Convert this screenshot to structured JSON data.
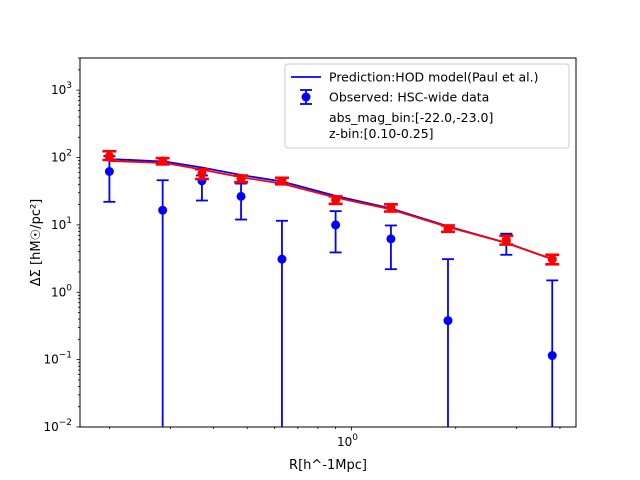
{
  "chart_data": {
    "type": "scatter",
    "xscale": "log",
    "yscale": "log",
    "xlim": [
      0.1645,
      4.45
    ],
    "ylim": [
      0.01,
      3000
    ],
    "xlabel": "R[h^-1Mpc]",
    "ylabel": "ΔΣ [hM☉/pc²]",
    "x_tick_labels": [
      {
        "value": 1,
        "base": "10",
        "exp": "0"
      }
    ],
    "y_tick_labels": [
      {
        "value": 0.01,
        "base": "10",
        "exp": "−2"
      },
      {
        "value": 0.1,
        "base": "10",
        "exp": "−1"
      },
      {
        "value": 1,
        "base": "10",
        "exp": "0"
      },
      {
        "value": 10,
        "base": "10",
        "exp": "1"
      },
      {
        "value": 100,
        "base": "10",
        "exp": "2"
      },
      {
        "value": 1000,
        "base": "10",
        "exp": "3"
      }
    ],
    "series": [
      {
        "name": "Prediction:HOD model(Paul et al.)",
        "kind": "line",
        "color": "#0000ff",
        "x": [
          0.2,
          0.29,
          0.37,
          0.48,
          0.63,
          0.9,
          1.3,
          1.9,
          2.8,
          3.8
        ],
        "y": [
          95,
          87,
          71,
          55,
          44,
          27,
          17.5,
          9.5,
          5.4,
          3.1
        ]
      },
      {
        "name": "Observed: HSC-wide data",
        "kind": "errorbar",
        "color": "#0000ff",
        "x": [
          0.2,
          0.285,
          0.37,
          0.48,
          0.63,
          0.9,
          1.3,
          1.9,
          2.8,
          3.8
        ],
        "y": [
          62,
          16.5,
          45,
          26.5,
          3.1,
          10,
          6.2,
          0.38,
          5.8,
          0.115
        ],
        "yerr_low": [
          22,
          0.008,
          23,
          12,
          0.008,
          3.9,
          2.2,
          0.008,
          3.6,
          0.008
        ],
        "yerr_high": [
          105,
          46,
          54,
          41,
          11.5,
          16,
          9.8,
          3.1,
          7.4,
          1.5
        ]
      },
      {
        "kind": "line",
        "color": "#ff0000",
        "x": [
          0.2,
          0.29,
          0.37,
          0.48,
          0.63,
          0.9,
          1.3,
          1.9,
          2.8,
          3.8
        ],
        "y": [
          89,
          83,
          66,
          51,
          41,
          25.5,
          17,
          9.3,
          5.4,
          3.1
        ]
      },
      {
        "kind": "errorbar",
        "color": "#ff0000",
        "x": [
          0.2,
          0.285,
          0.37,
          0.48,
          0.63,
          0.9,
          1.3,
          1.9,
          2.8,
          3.8
        ],
        "y": [
          104,
          89,
          58,
          49,
          45,
          23.5,
          18,
          8.8,
          6.0,
          3.1
        ],
        "yerr_low": [
          92,
          79,
          48,
          43,
          40,
          20.5,
          15.8,
          7.9,
          5.1,
          2.6
        ],
        "yerr_high": [
          124,
          98,
          67,
          54,
          50,
          26.5,
          20.2,
          9.8,
          6.9,
          3.6
        ]
      }
    ],
    "legend": {
      "position": "top-right",
      "entries": [
        "Prediction:HOD model(Paul et al.)",
        "Observed: HSC-wide data",
        "abs_mag_bin:[-22.0,-23.0]",
        "z-bin:[0.10-0.25]"
      ]
    },
    "grid": false
  }
}
